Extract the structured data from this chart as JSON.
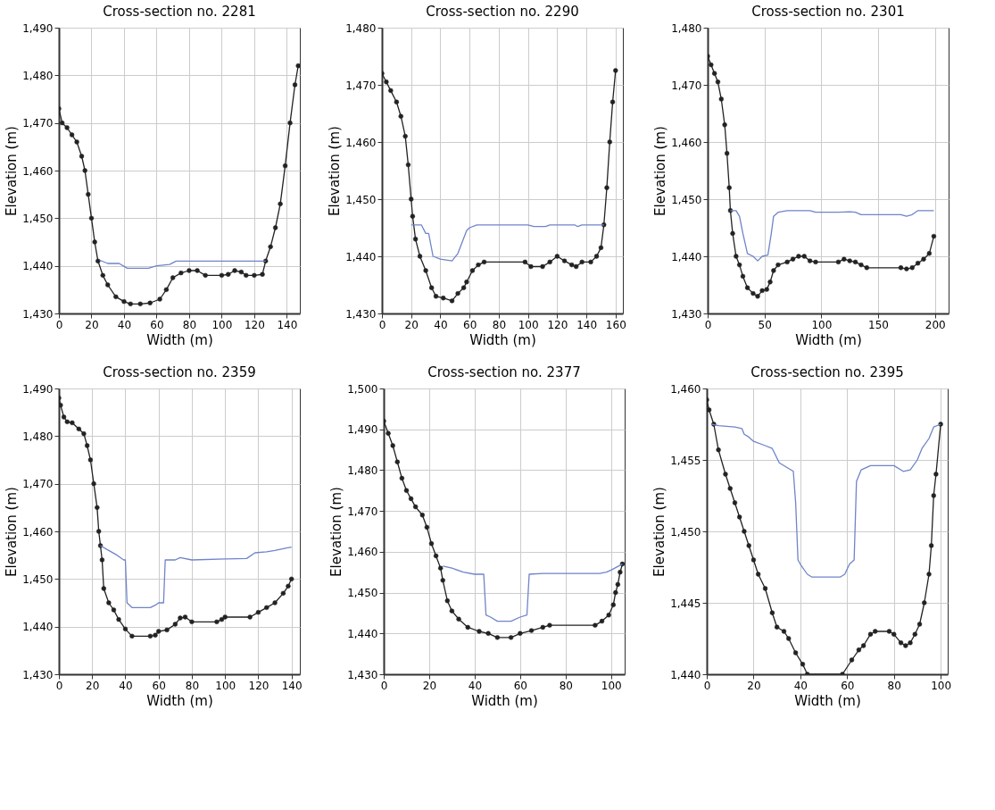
{
  "chart_data": [
    {
      "type": "line",
      "title": "Cross-section no. 2281",
      "xlabel": "Width (m)",
      "ylabel": "Elevation (m)",
      "xlim": [
        0,
        148
      ],
      "xticks": [
        0,
        20,
        40,
        60,
        80,
        100,
        120,
        140
      ],
      "ylim": [
        1430,
        1490
      ],
      "yticks": [
        {
          "value": 1430,
          "label": "1,430"
        },
        {
          "value": 1440,
          "label": "1,440"
        },
        {
          "value": 1450,
          "label": "1,450"
        },
        {
          "value": 1460,
          "label": "1,460"
        },
        {
          "value": 1470,
          "label": "1,470"
        },
        {
          "value": 1480,
          "label": "1,480"
        },
        {
          "value": 1490,
          "label": "1,490"
        }
      ],
      "grid": true,
      "line_style": "solid",
      "series": [
        {
          "color": "#222222",
          "marker": "circle",
          "x": [
            0,
            2,
            5,
            8,
            11,
            14,
            16,
            18,
            20,
            22,
            24,
            27,
            30,
            35,
            40,
            44,
            50,
            56,
            62,
            66,
            70,
            75,
            80,
            85,
            90,
            100,
            104,
            108,
            112,
            115,
            120,
            125,
            127,
            130,
            133,
            136,
            139,
            142,
            145,
            147
          ],
          "values": [
            1473,
            1470,
            1469,
            1467.5,
            1466,
            1463,
            1460,
            1455,
            1450,
            1445,
            1441,
            1438,
            1436,
            1433.5,
            1432.5,
            1432,
            1432,
            1432.2,
            1433,
            1435,
            1437.5,
            1438.5,
            1439,
            1439,
            1438,
            1438,
            1438.2,
            1439,
            1438.7,
            1438,
            1438,
            1438.2,
            1441,
            1444,
            1448,
            1453,
            1461,
            1470,
            1478,
            1482
          ]
        },
        {
          "color": "#6f84c9",
          "marker": "none",
          "x": [
            25,
            30,
            37,
            42,
            55,
            60,
            68,
            72,
            127
          ],
          "values": [
            1441.2,
            1440.5,
            1440.5,
            1439.5,
            1439.5,
            1440,
            1440.3,
            1441,
            1441
          ]
        }
      ]
    },
    {
      "type": "line",
      "title": "Cross-section no. 2290",
      "xlabel": "Width (m)",
      "ylabel": "Elevation (m)",
      "xlim": [
        0,
        165
      ],
      "xticks": [
        0,
        20,
        40,
        60,
        80,
        100,
        120,
        140,
        160
      ],
      "ylim": [
        1430,
        1480
      ],
      "yticks": [
        {
          "value": 1430,
          "label": "1,430"
        },
        {
          "value": 1440,
          "label": "1,440"
        },
        {
          "value": 1450,
          "label": "1,450"
        },
        {
          "value": 1460,
          "label": "1,460"
        },
        {
          "value": 1470,
          "label": "1,470"
        },
        {
          "value": 1480,
          "label": "1,480"
        }
      ],
      "grid": true,
      "line_style": "solid",
      "series": [
        {
          "color": "#222222",
          "marker": "circle",
          "x": [
            0,
            3,
            6,
            10,
            13,
            16,
            18,
            20,
            21,
            23,
            26,
            30,
            34,
            37,
            42,
            48,
            52,
            56,
            58,
            62,
            66,
            70,
            98,
            102,
            110,
            115,
            120,
            125,
            130,
            133,
            137,
            143,
            147,
            150,
            152,
            154,
            156,
            158,
            160
          ],
          "values": [
            1472,
            1470.5,
            1469,
            1467,
            1464.5,
            1461,
            1456,
            1450,
            1447,
            1443,
            1440,
            1437.5,
            1434.5,
            1433,
            1432.7,
            1432.2,
            1433.5,
            1434.5,
            1435.5,
            1437.5,
            1438.5,
            1439,
            1439,
            1438.2,
            1438.2,
            1439,
            1440,
            1439.2,
            1438.5,
            1438.2,
            1439,
            1439,
            1440,
            1441.5,
            1445.5,
            1452,
            1460,
            1467,
            1472.5
          ]
        },
        {
          "color": "#6f84c9",
          "marker": "none",
          "x": [
            20,
            27,
            30,
            32,
            35,
            40,
            48,
            52,
            55,
            58,
            60,
            65,
            100,
            104,
            112,
            115,
            132,
            134,
            137,
            152
          ],
          "values": [
            1445.5,
            1445.5,
            1444,
            1444,
            1440,
            1439.5,
            1439.2,
            1440.5,
            1442.5,
            1444.5,
            1445,
            1445.5,
            1445.5,
            1445.2,
            1445.2,
            1445.5,
            1445.5,
            1445.2,
            1445.5,
            1445.5
          ]
        }
      ]
    },
    {
      "type": "line",
      "title": "Cross-section no. 2301",
      "xlabel": "Width (m)",
      "ylabel": "Elevation (m)",
      "xlim": [
        0,
        212
      ],
      "xticks": [
        0,
        50,
        100,
        150,
        200
      ],
      "ylim": [
        1430,
        1480
      ],
      "yticks": [
        {
          "value": 1430,
          "label": "1,430"
        },
        {
          "value": 1440,
          "label": "1,440"
        },
        {
          "value": 1450,
          "label": "1,450"
        },
        {
          "value": 1460,
          "label": "1,460"
        },
        {
          "value": 1470,
          "label": "1,470"
        },
        {
          "value": 1480,
          "label": "1,480"
        }
      ],
      "grid": true,
      "line_style": "solid",
      "series": [
        {
          "color": "#222222",
          "marker": "circle",
          "x": [
            0,
            3,
            6,
            9,
            12,
            15,
            17,
            19,
            20,
            22,
            25,
            28,
            31,
            35,
            40,
            44,
            48,
            52,
            55,
            58,
            62,
            70,
            75,
            80,
            85,
            90,
            95,
            115,
            120,
            125,
            130,
            135,
            140,
            170,
            175,
            180,
            185,
            190,
            195,
            199
          ],
          "values": [
            1475,
            1473.5,
            1472,
            1470.5,
            1467.5,
            1463,
            1458,
            1452,
            1448,
            1444,
            1440,
            1438.5,
            1436.5,
            1434.5,
            1433.5,
            1433,
            1434,
            1434.2,
            1435.5,
            1437.5,
            1438.5,
            1439,
            1439.5,
            1440,
            1440,
            1439.2,
            1439,
            1439,
            1439.5,
            1439.2,
            1439,
            1438.5,
            1438,
            1438,
            1437.8,
            1438,
            1438.8,
            1439.5,
            1440.5,
            1443.5
          ]
        },
        {
          "color": "#6f84c9",
          "marker": "none",
          "x": [
            20,
            25,
            28,
            31,
            35,
            40,
            44,
            48,
            53,
            56,
            58,
            62,
            70,
            90,
            95,
            115,
            125,
            130,
            135,
            170,
            175,
            180,
            185,
            199
          ],
          "values": [
            1448,
            1448,
            1447,
            1444,
            1440.5,
            1440,
            1439.2,
            1440,
            1440.2,
            1444,
            1447,
            1447.7,
            1448,
            1448,
            1447.7,
            1447.7,
            1447.8,
            1447.7,
            1447.3,
            1447.3,
            1447,
            1447.3,
            1448,
            1448
          ]
        }
      ]
    },
    {
      "type": "line",
      "title": "Cross-section no. 2359",
      "xlabel": "Width (m)",
      "ylabel": "Elevation (m)",
      "xlim": [
        0,
        145
      ],
      "xticks": [
        0,
        20,
        40,
        60,
        80,
        100,
        120,
        140
      ],
      "ylim": [
        1430,
        1490
      ],
      "yticks": [
        {
          "value": 1430,
          "label": "1,430"
        },
        {
          "value": 1440,
          "label": "1,440"
        },
        {
          "value": 1450,
          "label": "1,450"
        },
        {
          "value": 1460,
          "label": "1,460"
        },
        {
          "value": 1470,
          "label": "1,470"
        },
        {
          "value": 1480,
          "label": "1,480"
        },
        {
          "value": 1490,
          "label": "1,490"
        }
      ],
      "grid": true,
      "line_style": "solid",
      "series": [
        {
          "color": "#222222",
          "marker": "circle",
          "x": [
            0,
            1,
            3,
            5,
            8,
            12,
            15,
            17,
            19,
            21,
            23,
            24,
            25,
            26,
            27,
            30,
            33,
            36,
            40,
            44,
            55,
            58,
            60,
            65,
            70,
            73,
            76,
            80,
            95,
            98,
            100,
            115,
            120,
            125,
            130,
            135,
            138,
            140
          ],
          "values": [
            1488,
            1486.5,
            1484,
            1483,
            1482.8,
            1481.5,
            1480.5,
            1478,
            1475,
            1470,
            1465,
            1460,
            1457,
            1454,
            1448,
            1445,
            1443.5,
            1441.5,
            1439.5,
            1438,
            1438,
            1438.2,
            1439,
            1439.3,
            1440.5,
            1441.8,
            1442,
            1441,
            1441,
            1441.5,
            1442,
            1442,
            1443,
            1444,
            1445,
            1447,
            1448.5,
            1450
          ]
        },
        {
          "color": "#6f84c9",
          "marker": "none",
          "x": [
            25,
            30,
            35,
            39,
            40,
            41,
            44,
            55,
            58,
            60,
            63,
            64,
            70,
            73,
            80,
            100,
            113,
            118,
            125,
            130,
            137,
            140
          ],
          "values": [
            1457,
            1456,
            1455,
            1454,
            1454,
            1445,
            1444,
            1444,
            1444.5,
            1445,
            1445,
            1454,
            1454,
            1454.5,
            1454,
            1454.2,
            1454.3,
            1455.5,
            1455.7,
            1456,
            1456.5,
            1456.7
          ]
        }
      ]
    },
    {
      "type": "line",
      "title": "Cross-section no. 2377",
      "xlabel": "Width (m)",
      "ylabel": "Elevation (m)",
      "xlim": [
        0,
        106
      ],
      "xticks": [
        0,
        20,
        40,
        60,
        80,
        100
      ],
      "ylim": [
        1430,
        1500
      ],
      "yticks": [
        {
          "value": 1430,
          "label": "1,430"
        },
        {
          "value": 1440,
          "label": "1,440"
        },
        {
          "value": 1450,
          "label": "1,450"
        },
        {
          "value": 1460,
          "label": "1,460"
        },
        {
          "value": 1470,
          "label": "1,470"
        },
        {
          "value": 1480,
          "label": "1,480"
        },
        {
          "value": 1490,
          "label": "1,490"
        },
        {
          "value": 1500,
          "label": "1,500"
        }
      ],
      "grid": true,
      "line_style": "solid",
      "series": [
        {
          "color": "#222222",
          "marker": "circle",
          "x": [
            0,
            2,
            4,
            6,
            8,
            10,
            12,
            14,
            17,
            19,
            21,
            23,
            25,
            26,
            28,
            30,
            33,
            37,
            42,
            46,
            50,
            56,
            60,
            65,
            70,
            73,
            93,
            96,
            99,
            101,
            102,
            103,
            104,
            105
          ],
          "values": [
            1492,
            1489,
            1486,
            1482,
            1478,
            1475,
            1473,
            1471,
            1469,
            1466,
            1462,
            1459,
            1456,
            1453,
            1448,
            1445.5,
            1443.5,
            1441.5,
            1440.5,
            1440,
            1439,
            1439,
            1440,
            1440.7,
            1441.5,
            1442,
            1442,
            1443,
            1444.5,
            1447,
            1450,
            1452,
            1455,
            1457
          ]
        },
        {
          "color": "#6f84c9",
          "marker": "none",
          "x": [
            26,
            30,
            35,
            40,
            44,
            45,
            47,
            50,
            56,
            60,
            63,
            64,
            70,
            95,
            98,
            100,
            105
          ],
          "values": [
            1456.5,
            1456,
            1455,
            1454.5,
            1454.5,
            1444.5,
            1444,
            1443,
            1443,
            1444,
            1444.5,
            1454.5,
            1454.7,
            1454.7,
            1455,
            1455.5,
            1457
          ]
        }
      ]
    },
    {
      "type": "line",
      "title": "Cross-section no. 2395",
      "xlabel": "Width (m)",
      "ylabel": "Elevation (m)",
      "xlim": [
        0,
        103
      ],
      "xticks": [
        0,
        20,
        40,
        60,
        80,
        100
      ],
      "ylim": [
        1440,
        1460
      ],
      "yticks": [
        {
          "value": 1440,
          "label": "1,440"
        },
        {
          "value": 1445,
          "label": "1,445"
        },
        {
          "value": 1450,
          "label": "1,450"
        },
        {
          "value": 1455,
          "label": "1,455"
        },
        {
          "value": 1460,
          "label": "1,460"
        }
      ],
      "grid": true,
      "line_style": "solid",
      "series": [
        {
          "color": "#222222",
          "marker": "circle",
          "x": [
            0,
            1,
            3,
            5,
            8,
            10,
            12,
            14,
            16,
            18,
            20,
            22,
            25,
            28,
            30,
            33,
            35,
            38,
            41,
            43,
            58,
            62,
            65,
            67,
            70,
            72,
            78,
            80,
            83,
            85,
            87,
            89,
            91,
            93,
            95,
            96,
            97,
            98,
            100
          ],
          "values": [
            1459.2,
            1458.5,
            1457.5,
            1455.7,
            1454,
            1453,
            1452,
            1451,
            1450,
            1449,
            1448,
            1447,
            1446,
            1444.3,
            1443.3,
            1443,
            1442.5,
            1441.5,
            1440.7,
            1440,
            1440,
            1441,
            1441.7,
            1442,
            1442.8,
            1443,
            1443,
            1442.8,
            1442.2,
            1442,
            1442.2,
            1442.8,
            1443.5,
            1445,
            1447,
            1449,
            1452.5,
            1454,
            1457.5
          ]
        },
        {
          "color": "#6f84c9",
          "marker": "none",
          "x": [
            2,
            5,
            12,
            15,
            16,
            18,
            20,
            25,
            28,
            31,
            34,
            37,
            38,
            39,
            40,
            43,
            45,
            57,
            59,
            61,
            63,
            64,
            66,
            70,
            80,
            84,
            87,
            90,
            92,
            95,
            97,
            100
          ],
          "values": [
            1457.5,
            1457.4,
            1457.3,
            1457.2,
            1456.8,
            1456.6,
            1456.3,
            1456,
            1455.8,
            1454.8,
            1454.5,
            1454.2,
            1452,
            1448,
            1447.7,
            1447,
            1446.8,
            1446.8,
            1447,
            1447.7,
            1448,
            1453.5,
            1454.3,
            1454.6,
            1454.6,
            1454.2,
            1454.3,
            1455,
            1455.8,
            1456.5,
            1457.3,
            1457.5
          ]
        }
      ]
    }
  ]
}
